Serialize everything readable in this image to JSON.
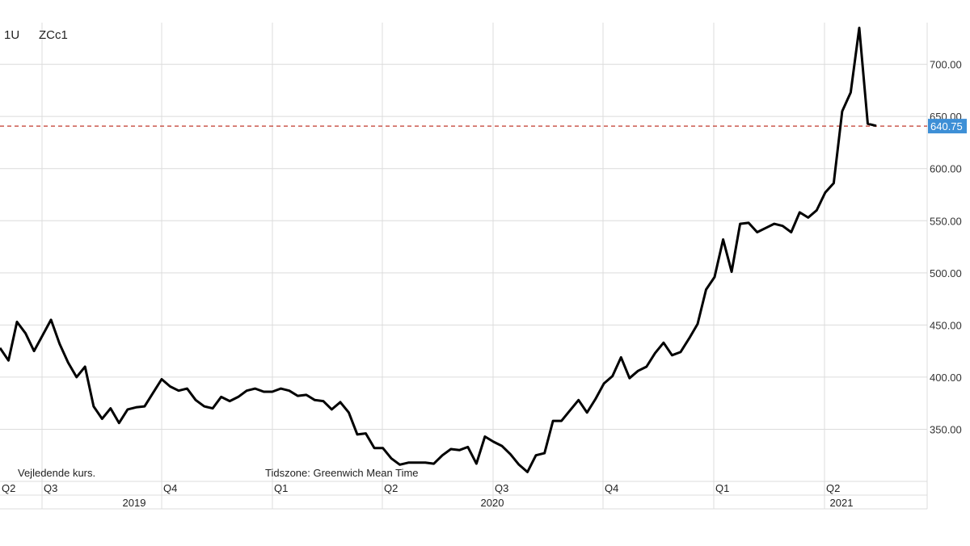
{
  "header": {
    "interval": "1U",
    "symbol": "ZCc1"
  },
  "footer": {
    "note": "Vejledende kurs.",
    "timezone": "Tidszone: Greenwich Mean Time"
  },
  "colors": {
    "line": "#000000",
    "grid": "#dcdcdc",
    "reference": "#c0392b",
    "price_tag": "#3d8fd6"
  },
  "chart_data": {
    "type": "line",
    "ylim": [
      300,
      740
    ],
    "y_ticks": [
      "350.00",
      "400.00",
      "450.00",
      "500.00",
      "550.00",
      "600.00",
      "650.00",
      "700.00"
    ],
    "x_quarter_labels": [
      "Q2",
      "Q3",
      "Q4",
      "Q1",
      "Q2",
      "Q3",
      "Q4",
      "Q1",
      "Q2"
    ],
    "x_year_labels": [
      "2019",
      "2020",
      "2021"
    ],
    "current_price": 640.75,
    "current_price_label": "640.75",
    "grid": true,
    "series": [
      {
        "values": [
          428,
          416,
          453,
          442,
          425,
          440,
          455,
          432,
          414,
          400,
          410,
          372,
          360,
          370,
          356,
          369,
          371,
          372,
          385,
          398,
          391,
          387,
          389,
          378,
          372,
          370,
          381,
          377,
          381,
          387,
          389,
          386,
          386,
          389,
          387,
          382,
          383,
          378,
          377,
          369,
          376,
          366,
          345,
          346,
          332,
          332,
          322,
          316,
          318,
          318,
          318,
          317,
          325,
          331,
          330,
          333,
          317,
          343,
          338,
          334,
          326,
          316,
          309,
          325,
          327,
          358,
          358,
          368,
          378,
          366,
          379,
          394,
          401,
          419,
          399,
          406,
          410,
          423,
          433,
          421,
          424,
          437,
          451,
          484,
          496,
          532,
          501,
          547,
          548,
          539,
          543,
          547,
          545,
          539,
          558,
          553,
          560,
          577,
          586,
          655,
          673,
          735,
          643,
          641
        ]
      }
    ]
  }
}
